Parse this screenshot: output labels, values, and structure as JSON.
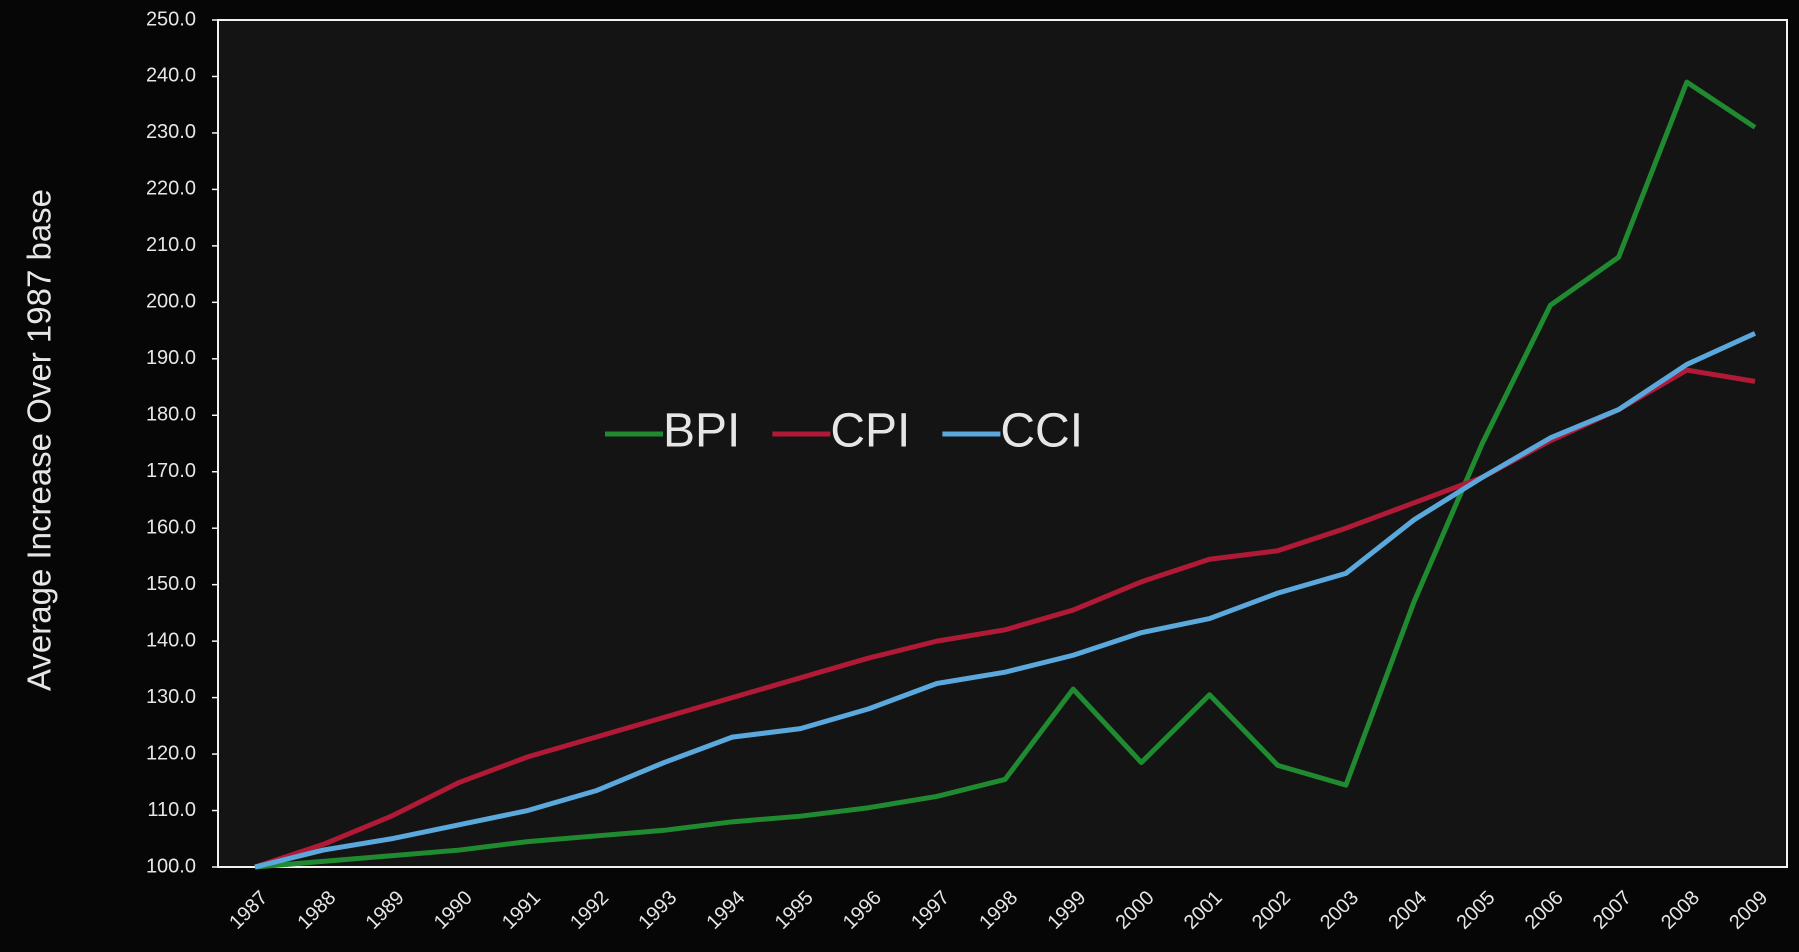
{
  "chart_data": {
    "type": "line",
    "y_label": "Average Increase Over 1987 base",
    "categories": [
      "1987",
      "1988",
      "1989",
      "1990",
      "1991",
      "1992",
      "1993",
      "1994",
      "1995",
      "1996",
      "1997",
      "1998",
      "1999",
      "2000",
      "2001",
      "2002",
      "2003",
      "2004",
      "2005",
      "2006",
      "2007",
      "2008",
      "2009"
    ],
    "series": [
      {
        "name": "BPI",
        "color": "#1f8a2f",
        "values": [
          100,
          101,
          102,
          103,
          104.5,
          105.5,
          106.5,
          108,
          109,
          110.5,
          112.5,
          115.5,
          131.5,
          118.5,
          130.5,
          118,
          114.5,
          147,
          175,
          199.5,
          208,
          239,
          231
        ]
      },
      {
        "name": "CPI",
        "color": "#b01a37",
        "values": [
          100,
          104,
          109,
          115,
          119.5,
          123,
          126.5,
          130,
          133.5,
          137,
          140,
          142,
          145.5,
          150.5,
          154.5,
          156,
          160,
          164.5,
          169,
          175.5,
          181,
          188,
          186
        ]
      },
      {
        "name": "CCI",
        "color": "#5aa8dc",
        "values": [
          100,
          103,
          105,
          107.5,
          110,
          113.5,
          118.5,
          123,
          124.5,
          128,
          132.5,
          134.5,
          137.5,
          141.5,
          144,
          148.5,
          152,
          161.5,
          169,
          176,
          181,
          189,
          194.5
        ]
      }
    ],
    "ylim": [
      100,
      250
    ],
    "yticks": [
      {
        "value": 100,
        "label": "100.0"
      },
      {
        "value": 110,
        "label": "110.0"
      },
      {
        "value": 120,
        "label": "120.0"
      },
      {
        "value": 130,
        "label": "130.0"
      },
      {
        "value": 140,
        "label": "140.0"
      },
      {
        "value": 150,
        "label": "150.0"
      },
      {
        "value": 160,
        "label": "160.0"
      },
      {
        "value": 170,
        "label": "170.0"
      },
      {
        "value": 180,
        "label": "180.0"
      },
      {
        "value": 190,
        "label": "190.0"
      },
      {
        "value": 200,
        "label": "200.0"
      },
      {
        "value": 210,
        "label": "210.0"
      },
      {
        "value": 220,
        "label": "220.0"
      },
      {
        "value": 230,
        "label": "230.0"
      },
      {
        "value": 240,
        "label": "240.0"
      },
      {
        "value": 250,
        "label": "250.0"
      }
    ],
    "grid": false,
    "legend": "center"
  }
}
